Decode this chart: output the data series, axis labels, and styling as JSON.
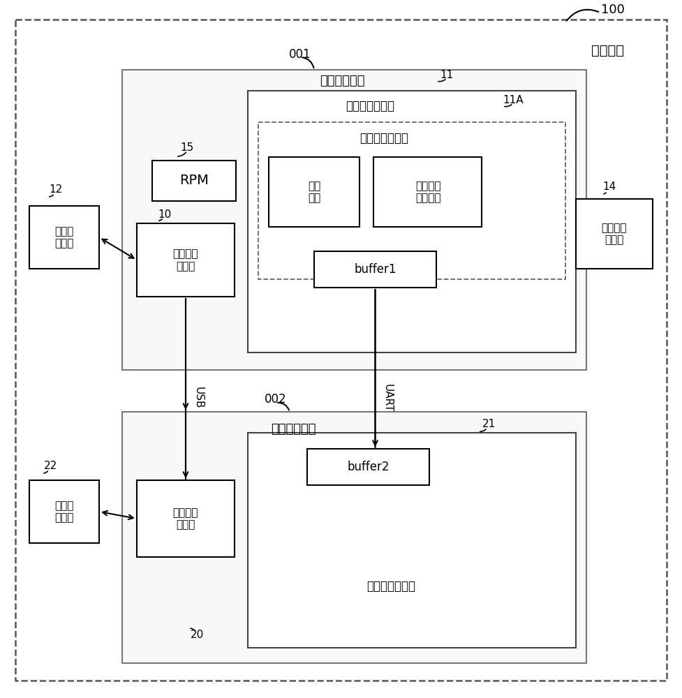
{
  "title": "移动终端",
  "label_100": "100",
  "label_001": "001",
  "label_002": "002",
  "label_11": "11",
  "label_11A": "11A",
  "label_10": "10",
  "label_12": "12",
  "label_14": "14",
  "label_15": "15",
  "label_20": "20",
  "label_21": "21",
  "label_22": "22",
  "chip1_label": "第一处理芯片",
  "chip2_label": "第二处理芯片",
  "modem1_label": "第一调制解调器",
  "modem2_label": "第二调制解调器",
  "vsim_label": "虚拟用户识别卡",
  "storage_label": "存储\n模块",
  "vos_label": "虚拟片内\n操作系统",
  "buffer1_label": "buffer1",
  "buffer2_label": "buffer2",
  "app1_label": "第一应用\n处理器",
  "app2_label": "第二应用\n处理器",
  "rpm_label": "RPM",
  "rf1_label": "第一射\n频模块",
  "rf2_label": "第二射\n频模块",
  "sim_label": "实体用户\n识别卡",
  "usb_label": "USB",
  "uart_label": "UART",
  "bg_color": "#ffffff"
}
